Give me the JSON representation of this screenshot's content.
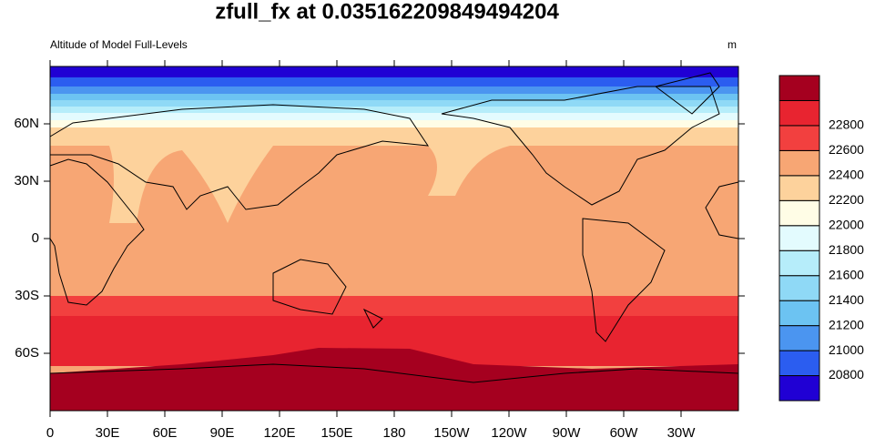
{
  "title": "zfull_fx at 0.035162209849494204",
  "left_string": "Altitude of Model Full-Levels",
  "right_string": "m",
  "x_axis": {
    "lim": [
      0,
      360
    ],
    "ticks": [
      0,
      {
        "value": 30,
        "label": "30E"
      },
      {
        "value": 60,
        "label": "60E"
      },
      {
        "value": 90,
        "label": "90E"
      },
      {
        "value": 120,
        "label": "120E"
      },
      {
        "value": 150,
        "label": "150E"
      },
      180,
      {
        "value": 210,
        "label": "150W"
      },
      {
        "value": 240,
        "label": "120W"
      },
      {
        "value": 270,
        "label": "90W"
      },
      {
        "value": 300,
        "label": "60W"
      },
      {
        "value": 330,
        "label": "30W"
      }
    ]
  },
  "y_axis": {
    "lim": [
      -90,
      90
    ],
    "ticks": [
      {
        "value": 60,
        "label": "60N"
      },
      {
        "value": 30,
        "label": "30N"
      },
      0,
      {
        "value": -30,
        "label": "30S"
      },
      {
        "value": -60,
        "label": "60S"
      }
    ]
  },
  "colorbar": {
    "levels": [
      20800,
      21000,
      21200,
      21400,
      21600,
      21800,
      22000,
      22200,
      22400,
      22600,
      22800
    ],
    "colors": [
      "#2000d4",
      "#2b5df0",
      "#4b95f0",
      "#6cc3f2",
      "#8fd9f6",
      "#b6edfa",
      "#e3fbfe",
      "#fffde6",
      "#fdd29c",
      "#f7a674",
      "#f2403f",
      "#e82430",
      "#a5001f"
    ]
  }
}
